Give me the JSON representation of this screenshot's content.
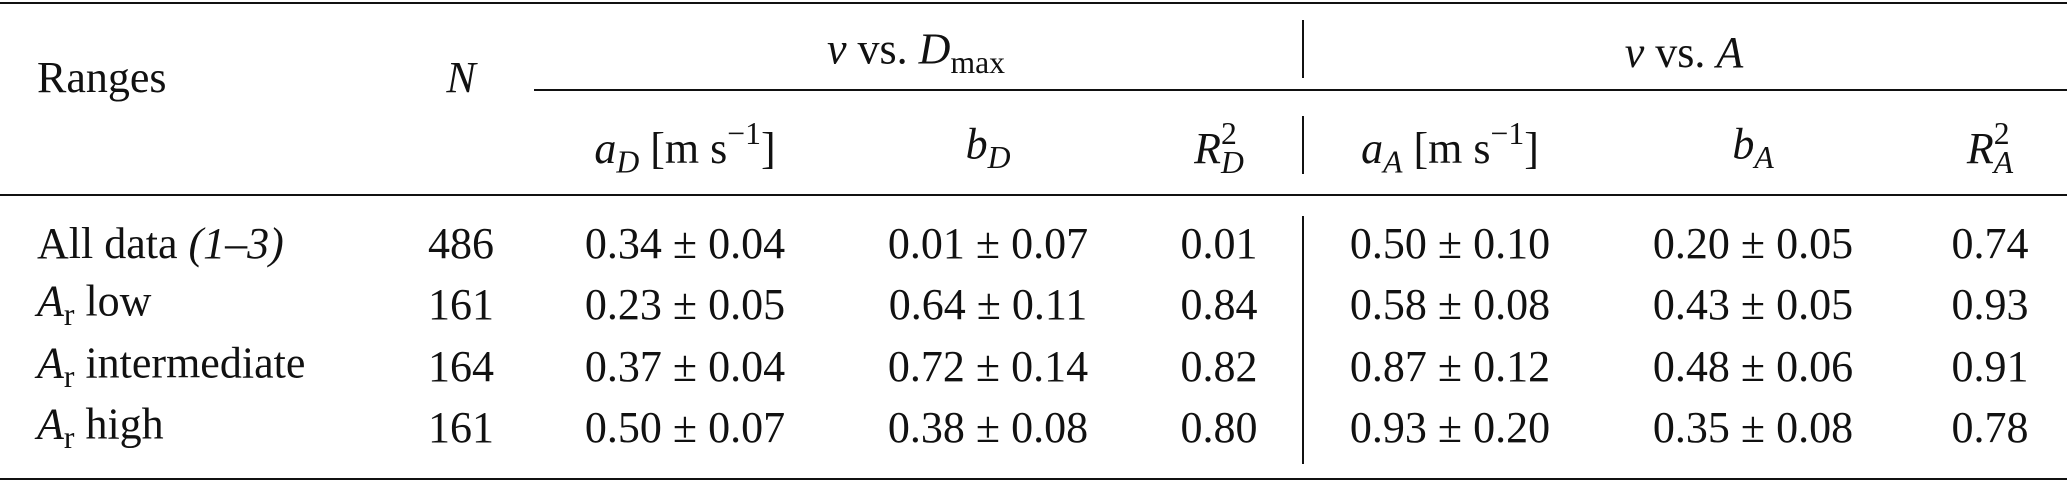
{
  "table": {
    "group_headers": [
      [
        {
          "t": "v",
          "i": true
        },
        {
          "t": " vs. "
        },
        {
          "t": "D",
          "i": true
        },
        {
          "t": "max",
          "sub": true
        }
      ],
      [
        {
          "t": "v",
          "i": true
        },
        {
          "t": " vs. "
        },
        {
          "t": "A",
          "i": true
        }
      ]
    ],
    "columns": [
      [
        {
          "t": "Ranges"
        }
      ],
      [
        {
          "t": "N",
          "i": true
        }
      ],
      [
        {
          "t": "a",
          "i": true
        },
        {
          "t": "D",
          "sub": true,
          "i": true
        },
        {
          "t": " [m s"
        },
        {
          "t": "−1",
          "sup": true
        },
        {
          "t": "]"
        }
      ],
      [
        {
          "t": "b",
          "i": true
        },
        {
          "t": "D",
          "sub": true,
          "i": true
        }
      ],
      [
        {
          "t": "R",
          "i": true
        },
        {
          "t": "2",
          "sup": true
        },
        {
          "t": "D",
          "sub": true,
          "i": true
        }
      ],
      [
        {
          "t": "a",
          "i": true
        },
        {
          "t": "A",
          "sub": true,
          "i": true
        },
        {
          "t": " [m s"
        },
        {
          "t": "−1",
          "sup": true
        },
        {
          "t": "]"
        }
      ],
      [
        {
          "t": "b",
          "i": true
        },
        {
          "t": "A",
          "sub": true,
          "i": true
        }
      ],
      [
        {
          "t": "R",
          "i": true
        },
        {
          "t": "2",
          "sup": true
        },
        {
          "t": "A",
          "sub": true,
          "i": true
        }
      ]
    ],
    "rows": [
      {
        "label": [
          {
            "t": "All data "
          },
          {
            "t": "(1–3)",
            "i": true
          }
        ],
        "cells": [
          "486",
          "0.34 ± 0.04",
          "0.01 ± 0.07",
          "0.01",
          "0.50 ± 0.10",
          "0.20 ± 0.05",
          "0.74"
        ]
      },
      {
        "label": [
          {
            "t": "A",
            "i": true
          },
          {
            "t": "r",
            "sub": true
          },
          {
            "t": " low"
          }
        ],
        "cells": [
          "161",
          "0.23 ± 0.05",
          "0.64 ± 0.11",
          "0.84",
          "0.58 ± 0.08",
          "0.43 ± 0.05",
          "0.93"
        ]
      },
      {
        "label": [
          {
            "t": "A",
            "i": true
          },
          {
            "t": "r",
            "sub": true
          },
          {
            "t": " intermediate"
          }
        ],
        "cells": [
          "164",
          "0.37 ± 0.04",
          "0.72 ± 0.14",
          "0.82",
          "0.87 ± 0.12",
          "0.48 ± 0.06",
          "0.91"
        ]
      },
      {
        "label": [
          {
            "t": "A",
            "i": true
          },
          {
            "t": "r",
            "sub": true
          },
          {
            "t": " high"
          }
        ],
        "cells": [
          "161",
          "0.50 ± 0.07",
          "0.38 ± 0.08",
          "0.80",
          "0.93 ± 0.20",
          "0.35 ± 0.08",
          "0.78"
        ]
      }
    ]
  }
}
